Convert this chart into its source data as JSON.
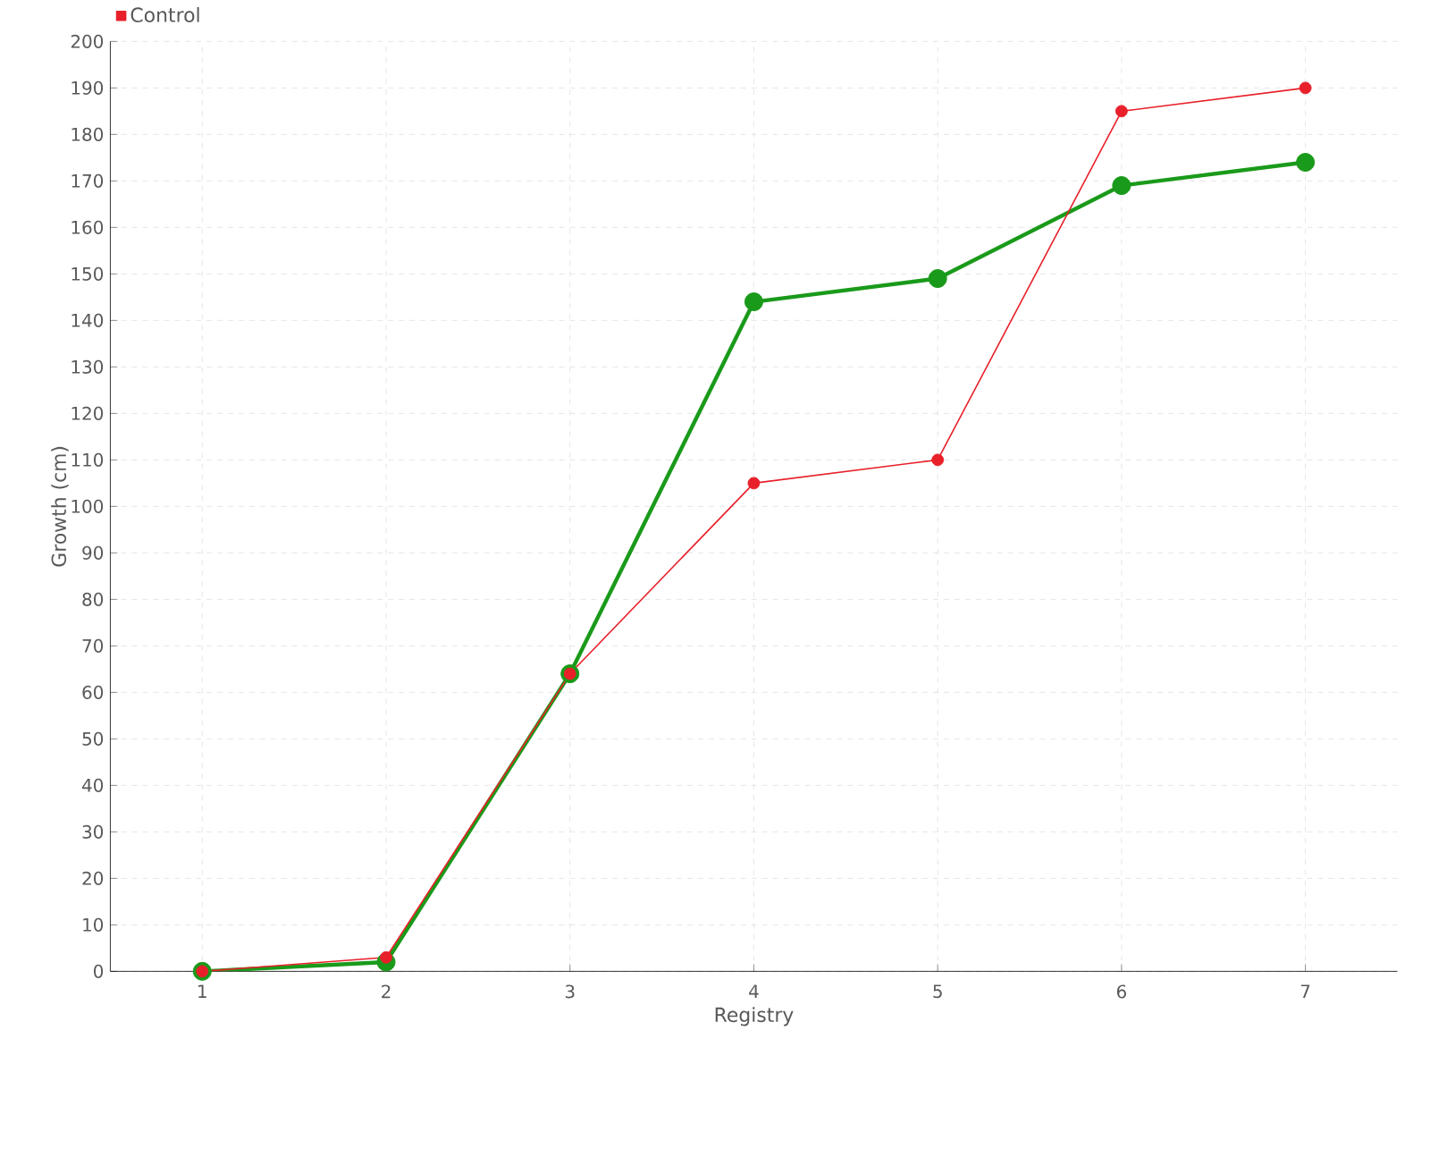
{
  "chart_data": {
    "type": "line",
    "xlabel": "Registry",
    "ylabel": "Growth (cm)",
    "categories": [
      "1",
      "2",
      "3",
      "4",
      "5",
      "6",
      "7"
    ],
    "series": [
      {
        "color": "#1a9a1a",
        "values": [
          0,
          2,
          64,
          144,
          149,
          169,
          174
        ]
      },
      {
        "name": "Control",
        "color": "#e8202a",
        "values": [
          0,
          3,
          64,
          105,
          110,
          185,
          190
        ]
      }
    ],
    "ylim": [
      0,
      200
    ],
    "yticks": [
      0,
      10,
      20,
      30,
      40,
      50,
      60,
      70,
      80,
      90,
      100,
      110,
      120,
      130,
      140,
      150,
      160,
      170,
      180,
      190,
      200
    ],
    "grid": true,
    "legend": "top left",
    "marker": "circle",
    "line_style": "solid"
  }
}
